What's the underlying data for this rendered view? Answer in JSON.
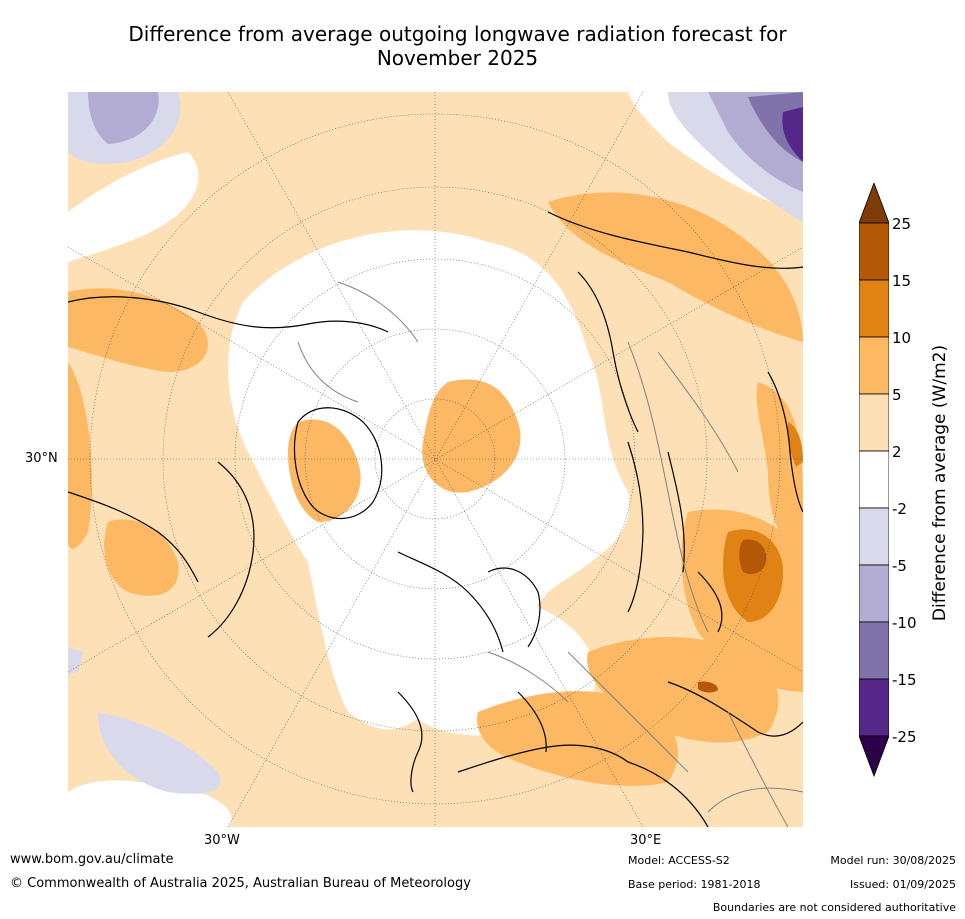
{
  "title_line1": "Difference from average outgoing longwave radiation forecast for",
  "title_line2": "November 2025",
  "map": {
    "lat_labels": [
      "30°N"
    ],
    "lon_labels": [
      "30°W",
      "30°E"
    ],
    "colors": {
      "p25": "#7f3b08",
      "p15": "#b35806",
      "p10": "#e08214",
      "p5": "#fdb863",
      "p2": "#fee0b6",
      "zero": "#ffffff",
      "n2": "#d8daeb",
      "n5": "#b2abd2",
      "n10": "#8073ac",
      "n15": "#542788",
      "n25": "#2d004b",
      "coast": "#000000",
      "border": "#808080"
    }
  },
  "colorbar": {
    "label": "Difference from average (W/m2)",
    "ticks": [
      "25",
      "15",
      "10",
      "5",
      "2",
      "-2",
      "-5",
      "-10",
      "-15",
      "-25"
    ],
    "bins": [
      "#b35806",
      "#e08214",
      "#fdb863",
      "#fee0b6",
      "#ffffff",
      "#d8daeb",
      "#b2abd2",
      "#8073ac",
      "#542788"
    ],
    "extend_max": "#7f3b08",
    "extend_min": "#2d004b"
  },
  "footer": {
    "website": "www.bom.gov.au/climate",
    "copyright": "© Commonwealth of Australia 2025, Australian Bureau of Meteorology",
    "model": "Model: ACCESS-S2",
    "base_period": "Base period: 1981-2018",
    "model_run": "Model run: 30/08/2025",
    "issued": "Issued: 01/09/2025",
    "boundaries_note": "Boundaries are not considered authoritative"
  }
}
